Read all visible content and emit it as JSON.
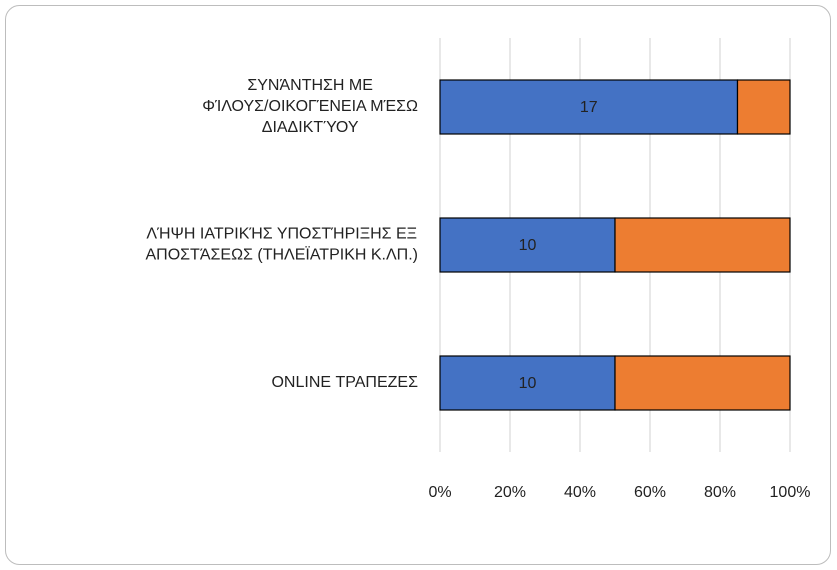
{
  "chart_data": {
    "type": "stacked_percent_bar_horizontal",
    "categories": [
      "ΣΥΝΆΝΤΗΣΗ ΜΕ\nΦΊΛΟΥΣ/ΟΙΚΟΓΈΝΕΙΑ ΜΈΣΩ\nΔΙΑΔΙΚΤΎΟΥ",
      "ΛΉΨΗ ΙΑΤΡΙΚΉΣ ΥΠΟΣΤΉΡΙΞΗΣ ΕΞ\nΑΠΟΣΤΆΣΕΩΣ (ΤΗΛΕΪΑΤΡΙΚΗ Κ.ΛΠ.)",
      "ONLINE ΤΡΑΠΕΖΕΣ"
    ],
    "series": [
      {
        "color": "#4472c4",
        "values": [
          17,
          10,
          10
        ],
        "data_labels": true
      },
      {
        "color": "#ed7d31",
        "values": [
          3,
          10,
          10
        ],
        "data_labels": false
      }
    ],
    "xlim": [
      0,
      100
    ],
    "xticks": [
      {
        "value": 0,
        "label": "0%"
      },
      {
        "value": 20,
        "label": "20%"
      },
      {
        "value": 40,
        "label": "40%"
      },
      {
        "value": 60,
        "label": "60%"
      },
      {
        "value": 80,
        "label": "80%"
      },
      {
        "value": 100,
        "label": "100%"
      }
    ],
    "grid": true
  }
}
